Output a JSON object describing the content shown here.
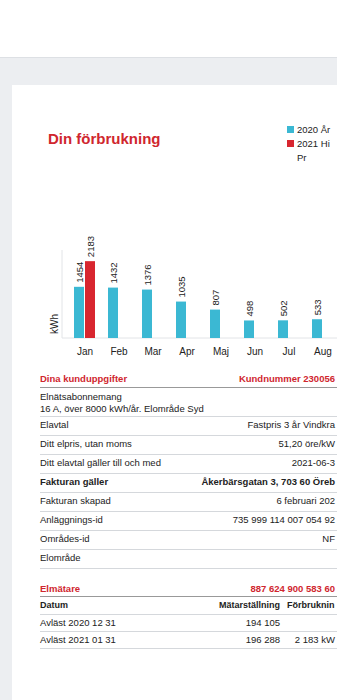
{
  "header": {
    "title": "Din förbrukning"
  },
  "chart_data": {
    "type": "bar",
    "categories": [
      "Jan",
      "Feb",
      "Mar",
      "Apr",
      "Maj",
      "Jun",
      "Jul",
      "Aug"
    ],
    "series": [
      {
        "name": "2020 År",
        "color": "#3bb8d3",
        "values": [
          1454,
          1432,
          1376,
          1035,
          807,
          498,
          502,
          533
        ]
      },
      {
        "name": "2021 Hi",
        "color": "#d8262f",
        "values": [
          2183,
          null,
          null,
          null,
          null,
          null,
          null,
          null
        ]
      }
    ],
    "y_label": "kWh",
    "ylim": [
      0,
      2500
    ],
    "tick_labels": "x",
    "data_labels": true,
    "legend_note": "Pr"
  },
  "customer": {
    "title": "Dina kunduppgifter",
    "customer_number": "Kundnummer 230056",
    "rows": [
      {
        "label": "Elnätsabonnemang",
        "detail": "16 A, över 8000 kWh/år. Elområde Syd"
      },
      {
        "label": "Elavtal",
        "value": "Fastpris 3 år Vindkra"
      },
      {
        "label": "Ditt elpris, utan moms",
        "value": "51,20 öre/kW"
      },
      {
        "label": "Ditt elavtal gäller till och med",
        "value": "2021-06-3"
      },
      {
        "label": "Fakturan gäller",
        "value": "Åkerbärsgatan 3, 703 60 Öreb",
        "emphasis": true
      },
      {
        "label": "Fakturan skapad",
        "value": "6 februari 202"
      },
      {
        "label": "Anläggnings-id",
        "value": "735 999 114 007 054 92"
      },
      {
        "label": "Områdes-id",
        "value": "NF"
      },
      {
        "label": "Elområde"
      }
    ]
  },
  "meter": {
    "title": "Elmätare",
    "id": "887 624 900 583 60",
    "columns": [
      "Datum",
      "Mätarställning",
      "Förbruknin"
    ],
    "rows": [
      [
        "Avläst 2020 12 31",
        "194 105"
      ],
      [
        "Avläst 2021 01 31",
        "196 288",
        "2 183 kW"
      ]
    ]
  }
}
